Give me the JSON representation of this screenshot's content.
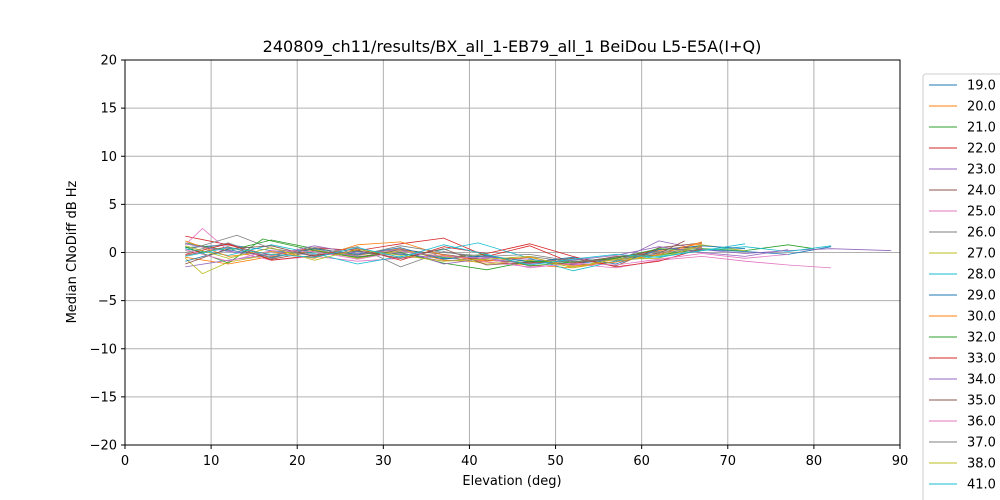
{
  "chart_data": {
    "type": "line",
    "title": "240809_ch11/results/BX_all_1-EB79_all_1 BeiDou L5-E5A(I+Q)",
    "xlabel": "Elevation (deg)",
    "ylabel": "Median CNoDiff dB Hz",
    "xlim": [
      0,
      90
    ],
    "ylim": [
      -20,
      20
    ],
    "xticks": [
      "0",
      "10",
      "20",
      "30",
      "40",
      "50",
      "60",
      "70",
      "80",
      "90"
    ],
    "yticks": [
      "−20",
      "−15",
      "−10",
      "−5",
      "0",
      "5",
      "10",
      "15",
      "20"
    ],
    "grid": true,
    "legend_position": "right",
    "series": [
      {
        "name": "19.0",
        "color": "#1f77b4",
        "x": [
          7,
          12,
          17,
          22,
          27,
          32,
          37,
          42,
          47,
          52,
          57,
          62,
          67,
          72,
          77,
          82
        ],
        "y": [
          0.5,
          0.8,
          0.2,
          -0.3,
          0.1,
          -0.2,
          -0.6,
          -0.4,
          -0.9,
          -1.2,
          -0.7,
          -0.2,
          0.3,
          0.1,
          -0.2,
          0.6
        ]
      },
      {
        "name": "20.0",
        "color": "#ff7f0e",
        "x": [
          7,
          12,
          17,
          22,
          27,
          32,
          37,
          42,
          47,
          52,
          57,
          62,
          67
        ],
        "y": [
          -0.5,
          -1.2,
          -0.4,
          0.2,
          -0.3,
          0.4,
          -0.8,
          -1.0,
          -1.3,
          -1.6,
          -0.9,
          0.2,
          0.9
        ]
      },
      {
        "name": "21.0",
        "color": "#2ca02c",
        "x": [
          7,
          12,
          17,
          22,
          27,
          32,
          37,
          42,
          47,
          52,
          57,
          62,
          67,
          72,
          77,
          80
        ],
        "y": [
          1.0,
          0.2,
          1.3,
          0.4,
          -0.2,
          0.1,
          -0.5,
          -0.2,
          -1.4,
          -1.0,
          -0.5,
          -0.3,
          0.4,
          0.2,
          0.8,
          0.4
        ]
      },
      {
        "name": "22.0",
        "color": "#d62728",
        "x": [
          7,
          12,
          17,
          22,
          27,
          32,
          37,
          42,
          47,
          52,
          57,
          62,
          67
        ],
        "y": [
          1.7,
          0.8,
          -0.3,
          0.5,
          0.2,
          0.9,
          1.5,
          -0.4,
          0.7,
          -1.1,
          -0.6,
          0.3,
          0.6
        ]
      },
      {
        "name": "23.0",
        "color": "#9467bd",
        "x": [
          7,
          12,
          17,
          22,
          27,
          32,
          37,
          42,
          47,
          52,
          57,
          62,
          67,
          72,
          77,
          82,
          89
        ],
        "y": [
          -1.5,
          -0.8,
          -0.2,
          0.3,
          -0.4,
          -0.1,
          -0.9,
          -0.5,
          -0.7,
          -1.3,
          -1.0,
          1.2,
          0.3,
          -0.1,
          0.2,
          0.4,
          0.2
        ]
      },
      {
        "name": "24.0",
        "color": "#8c564b",
        "x": [
          7,
          12,
          17,
          22,
          27,
          32,
          37,
          42,
          47,
          52,
          57,
          62,
          67
        ],
        "y": [
          -0.3,
          0.6,
          -0.7,
          0.1,
          -0.5,
          0.3,
          -0.2,
          -0.8,
          -1.1,
          -0.6,
          -1.4,
          0.5,
          1.0
        ]
      },
      {
        "name": "25.0",
        "color": "#e377c2",
        "x": [
          7,
          9,
          12,
          17,
          22,
          27,
          32,
          37,
          42,
          47,
          52,
          57,
          62,
          67,
          72,
          77,
          82
        ],
        "y": [
          0.8,
          2.5,
          0.2,
          -0.8,
          -0.4,
          -0.9,
          -0.6,
          -0.3,
          -1.0,
          -1.5,
          -1.2,
          -1.6,
          -0.8,
          -0.4,
          -0.9,
          -1.3,
          -1.6
        ]
      },
      {
        "name": "26.0",
        "color": "#7f7f7f",
        "x": [
          7,
          13,
          17,
          22,
          27,
          32,
          37,
          42,
          47,
          52,
          57,
          62,
          67
        ],
        "y": [
          0.2,
          1.8,
          0.4,
          -0.2,
          0.6,
          -1.5,
          0.1,
          -0.7,
          -0.4,
          -1.0,
          -0.5,
          0.1,
          0.5
        ]
      },
      {
        "name": "27.0",
        "color": "#bcbd22",
        "x": [
          7,
          9,
          12,
          17,
          22,
          27,
          32,
          37,
          42,
          47,
          52,
          57,
          62,
          67,
          72
        ],
        "y": [
          -0.6,
          -2.2,
          -1.0,
          -0.2,
          0.3,
          -0.6,
          0.2,
          -0.4,
          -1.2,
          -0.8,
          -1.5,
          -0.7,
          -0.3,
          0.8,
          0.2
        ]
      },
      {
        "name": "28.0",
        "color": "#17becf",
        "x": [
          7,
          12,
          17,
          22,
          27,
          32,
          37,
          41,
          47,
          52,
          57,
          62,
          67,
          72,
          77,
          82
        ],
        "y": [
          0.4,
          -0.3,
          0.8,
          -0.1,
          -1.2,
          -0.4,
          0.3,
          1.0,
          -0.6,
          -1.9,
          -0.9,
          -0.4,
          0.2,
          0.6,
          0.1,
          0.7
        ]
      },
      {
        "name": "29.0",
        "color": "#1f77b4",
        "x": [
          7,
          12,
          17,
          22,
          27,
          32,
          37,
          42,
          47,
          52,
          57,
          62,
          67,
          72
        ],
        "y": [
          -0.9,
          0.3,
          -0.5,
          0.4,
          -0.2,
          0.5,
          -0.7,
          -0.3,
          -1.0,
          -0.5,
          -1.2,
          0.3,
          0.7,
          0.4
        ]
      },
      {
        "name": "30.0",
        "color": "#ff7f0e",
        "x": [
          7,
          12,
          17,
          22,
          27,
          32,
          37,
          42,
          47,
          52,
          57,
          62,
          67
        ],
        "y": [
          1.2,
          -0.4,
          0.1,
          -0.6,
          0.8,
          1.1,
          -0.3,
          -0.9,
          -0.5,
          -1.4,
          -1.0,
          -0.2,
          1.1
        ]
      },
      {
        "name": "32.0",
        "color": "#2ca02c",
        "x": [
          7,
          12,
          16,
          22,
          27,
          32,
          37,
          42,
          47,
          52,
          57,
          62,
          67
        ],
        "y": [
          0.6,
          -1.1,
          1.4,
          0.2,
          -0.5,
          0.0,
          -1.1,
          -1.8,
          -0.9,
          -1.0,
          -0.6,
          0.4,
          0.2
        ]
      },
      {
        "name": "33.0",
        "color": "#d62728",
        "x": [
          7,
          12,
          17,
          22,
          27,
          32,
          37,
          42,
          47,
          52,
          57,
          62,
          67
        ],
        "y": [
          -0.2,
          0.9,
          -0.8,
          -0.3,
          0.4,
          -0.8,
          0.6,
          -0.1,
          0.9,
          -0.4,
          -1.5,
          -0.9,
          0.4
        ]
      },
      {
        "name": "34.0",
        "color": "#9467bd",
        "x": [
          7,
          12,
          17,
          22,
          27,
          32,
          37,
          42,
          47,
          52,
          57,
          62,
          67,
          72,
          77
        ],
        "y": [
          0.9,
          0.1,
          -0.3,
          0.7,
          -0.1,
          0.3,
          -1.2,
          -0.6,
          -1.2,
          -0.8,
          -0.3,
          0.6,
          0.0,
          -0.4,
          0.3
        ]
      },
      {
        "name": "35.0",
        "color": "#8c564b",
        "x": [
          7,
          12,
          17,
          22,
          27,
          32,
          37,
          42,
          47,
          52,
          57,
          62,
          65
        ],
        "y": [
          -1.2,
          0.4,
          0.7,
          -0.4,
          0.2,
          -0.6,
          0.4,
          -1.3,
          -1.0,
          -1.2,
          -0.4,
          -0.1,
          1.2
        ]
      },
      {
        "name": "36.0",
        "color": "#e377c2",
        "x": [
          7,
          12,
          17,
          22,
          27,
          32,
          37,
          42,
          47,
          52,
          57,
          62,
          67,
          72,
          77
        ],
        "y": [
          0.3,
          -0.9,
          0.2,
          0.1,
          -0.7,
          0.1,
          -0.4,
          -0.6,
          -1.6,
          -1.1,
          -1.3,
          -0.7,
          -0.1,
          -0.6,
          -0.2
        ]
      },
      {
        "name": "37.0",
        "color": "#7f7f7f",
        "x": [
          7,
          12,
          17,
          22,
          27,
          32,
          37,
          42,
          47,
          52,
          57,
          62,
          67
        ],
        "y": [
          0.0,
          1.0,
          -0.6,
          0.5,
          -0.3,
          0.7,
          0.0,
          -0.4,
          -0.2,
          -0.9,
          -0.8,
          0.0,
          0.3
        ]
      },
      {
        "name": "38.0",
        "color": "#bcbd22",
        "x": [
          7,
          12,
          17,
          22,
          27,
          32,
          37,
          42,
          47,
          52,
          57,
          62,
          67
        ],
        "y": [
          0.7,
          -0.6,
          0.5,
          -0.8,
          0.3,
          -0.3,
          -0.9,
          -0.7,
          -0.4,
          -1.6,
          -0.7,
          -0.6,
          0.7
        ]
      },
      {
        "name": "41.0",
        "color": "#17becf",
        "x": [
          7,
          12,
          17,
          22,
          27,
          32,
          37,
          42,
          47,
          52,
          57,
          62,
          67,
          72
        ],
        "y": [
          -0.4,
          0.5,
          -0.2,
          -0.5,
          0.5,
          -0.5,
          0.8,
          -0.2,
          -1.3,
          -0.7,
          -0.2,
          -0.5,
          0.2,
          0.9
        ]
      }
    ]
  }
}
